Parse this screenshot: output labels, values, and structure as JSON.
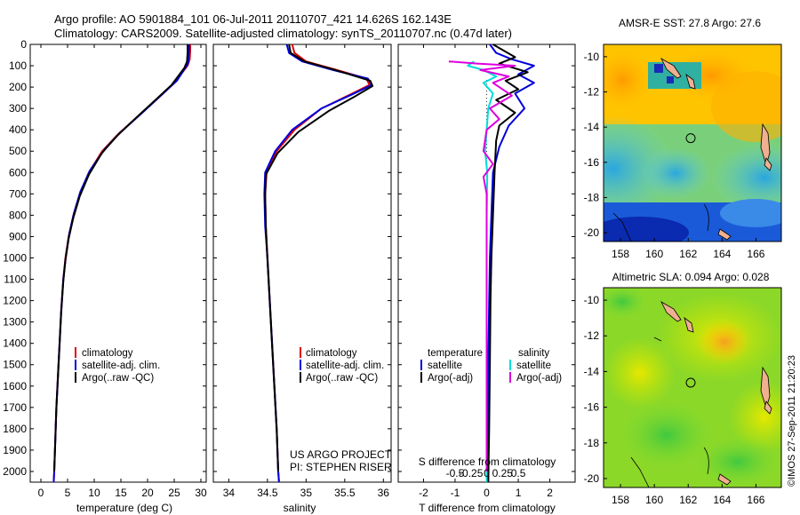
{
  "header": {
    "line1": "Argo profile: AO 5901884_101 06-Jul-2011 20110707_421 14.626S 162.143E",
    "line2": "Climatology: CARS2009. Satellite-adjusted climatology: synTS_20110707.nc (0.47d later)"
  },
  "credit": "©IMOS 27-Sep-2011 21:20:23",
  "chart_data": [
    {
      "name": "temperature",
      "type": "line",
      "xlabel": "temperature (deg C)",
      "ylabel": "",
      "xlim": [
        -2,
        31
      ],
      "ylim": [
        2050,
        0
      ],
      "xticks": [
        "0",
        "5",
        "10",
        "15",
        "20",
        "25",
        "30"
      ],
      "yticks": [
        "0",
        "100",
        "200",
        "300",
        "400",
        "500",
        "600",
        "700",
        "800",
        "900",
        "1000",
        "1100",
        "1200",
        "1300",
        "1400",
        "1500",
        "1600",
        "1700",
        "1800",
        "1900",
        "2000"
      ],
      "series": [
        {
          "name": "climatology",
          "color": "#e00000",
          "points": [
            [
              28.0,
              0
            ],
            [
              28.0,
              30
            ],
            [
              27.9,
              70
            ],
            [
              27.5,
              100
            ],
            [
              25,
              180
            ],
            [
              22,
              250
            ],
            [
              18.5,
              330
            ],
            [
              14.5,
              420
            ],
            [
              11.5,
              500
            ],
            [
              9.0,
              600
            ],
            [
              7.3,
              700
            ],
            [
              6.1,
              800
            ],
            [
              5.2,
              900
            ],
            [
              4.6,
              1000
            ],
            [
              4.2,
              1100
            ],
            [
              3.8,
              1250
            ],
            [
              3.5,
              1400
            ],
            [
              3.2,
              1550
            ],
            [
              2.9,
              1700
            ],
            [
              2.7,
              1850
            ],
            [
              2.5,
              2000
            ],
            [
              2.4,
              2050
            ]
          ]
        },
        {
          "name": "satellite-adj. clim.",
          "color": "#0000dd",
          "points": [
            [
              27.8,
              0
            ],
            [
              27.8,
              30
            ],
            [
              27.7,
              60
            ],
            [
              27.6,
              90
            ],
            [
              25.5,
              170
            ],
            [
              22.5,
              240
            ],
            [
              19,
              320
            ],
            [
              15,
              410
            ],
            [
              12,
              490
            ],
            [
              9.2,
              590
            ],
            [
              7.4,
              690
            ],
            [
              6.2,
              790
            ],
            [
              5.3,
              890
            ],
            [
              4.7,
              990
            ],
            [
              4.2,
              1100
            ],
            [
              3.8,
              1250
            ],
            [
              3.5,
              1400
            ],
            [
              3.2,
              1550
            ],
            [
              2.9,
              1700
            ],
            [
              2.7,
              1850
            ],
            [
              2.5,
              2000
            ],
            [
              2.4,
              2050
            ]
          ]
        },
        {
          "name": "Argo(..raw -QC)",
          "color": "#000000",
          "points": [
            [
              27.5,
              0
            ],
            [
              27.5,
              40
            ],
            [
              27.4,
              80
            ],
            [
              26.9,
              110
            ],
            [
              24.5,
              190
            ],
            [
              21.5,
              260
            ],
            [
              18,
              340
            ],
            [
              14.2,
              430
            ],
            [
              11.4,
              510
            ],
            [
              9.0,
              610
            ],
            [
              7.3,
              710
            ],
            [
              6.1,
              810
            ],
            [
              5.2,
              910
            ],
            [
              4.6,
              1010
            ],
            [
              4.2,
              1110
            ],
            [
              3.8,
              1260
            ],
            [
              3.5,
              1410
            ],
            [
              3.2,
              1560
            ],
            [
              2.9,
              1710
            ],
            [
              2.7,
              1860
            ],
            [
              2.5,
              2000
            ]
          ]
        }
      ],
      "legend": [
        "climatology",
        "satellite-adj. clim.",
        "Argo(..raw -QC)"
      ]
    },
    {
      "name": "salinity",
      "type": "line",
      "xlabel": "salinity",
      "xlim": [
        33.8,
        36.1
      ],
      "ylim": [
        2050,
        0
      ],
      "xticks": [
        "34",
        "34.5",
        "35",
        "35.5",
        "36"
      ],
      "series": [
        {
          "name": "climatology",
          "color": "#e00000",
          "points": [
            [
              34.82,
              0
            ],
            [
              34.85,
              40
            ],
            [
              35.0,
              80
            ],
            [
              35.4,
              120
            ],
            [
              35.78,
              160
            ],
            [
              35.82,
              190
            ],
            [
              35.6,
              230
            ],
            [
              35.2,
              300
            ],
            [
              34.85,
              400
            ],
            [
              34.62,
              500
            ],
            [
              34.49,
              600
            ],
            [
              34.47,
              700
            ],
            [
              34.48,
              850
            ],
            [
              34.5,
              1000
            ],
            [
              34.53,
              1200
            ],
            [
              34.56,
              1400
            ],
            [
              34.59,
              1600
            ],
            [
              34.62,
              1800
            ],
            [
              34.64,
              2000
            ],
            [
              34.65,
              2050
            ]
          ]
        },
        {
          "name": "satellite-adj. clim.",
          "color": "#0000dd",
          "points": [
            [
              34.75,
              0
            ],
            [
              34.78,
              40
            ],
            [
              34.95,
              80
            ],
            [
              35.35,
              120
            ],
            [
              35.8,
              160
            ],
            [
              35.85,
              190
            ],
            [
              35.62,
              230
            ],
            [
              35.2,
              300
            ],
            [
              34.82,
              400
            ],
            [
              34.6,
              500
            ],
            [
              34.47,
              600
            ],
            [
              34.46,
              700
            ],
            [
              34.47,
              850
            ],
            [
              34.5,
              1000
            ],
            [
              34.53,
              1200
            ],
            [
              34.56,
              1400
            ],
            [
              34.59,
              1600
            ],
            [
              34.62,
              1800
            ],
            [
              34.64,
              2000
            ],
            [
              34.65,
              2050
            ]
          ]
        },
        {
          "name": "Argo(..raw -QC)",
          "color": "#000000",
          "points": [
            [
              34.78,
              0
            ],
            [
              34.8,
              40
            ],
            [
              34.98,
              80
            ],
            [
              35.38,
              120
            ],
            [
              35.83,
              170
            ],
            [
              35.86,
              195
            ],
            [
              35.65,
              240
            ],
            [
              35.3,
              310
            ],
            [
              34.9,
              410
            ],
            [
              34.63,
              510
            ],
            [
              34.48,
              610
            ],
            [
              34.47,
              710
            ],
            [
              34.48,
              860
            ],
            [
              34.5,
              1010
            ],
            [
              34.53,
              1210
            ],
            [
              34.56,
              1410
            ],
            [
              34.59,
              1610
            ],
            [
              34.62,
              1810
            ],
            [
              34.64,
              2000
            ]
          ]
        }
      ],
      "legend": [
        "climatology",
        "satellite-adj. clim.",
        "Argo(..raw -QC)"
      ],
      "annotation": [
        "US ARGO PROJECT",
        "PI: STEPHEN RISER"
      ]
    },
    {
      "name": "difference",
      "type": "line",
      "xlabel": "T difference from climatology",
      "xlabel_top": "S difference from climatology",
      "xlim": [
        -2.8,
        2.8
      ],
      "ylim": [
        2050,
        0
      ],
      "xticks": [
        "-2",
        "-1",
        "0",
        "1",
        "2"
      ],
      "sticks": [
        "-0.5",
        "-0.25",
        "0",
        "0.25",
        "0.5"
      ],
      "series": [
        {
          "name": "temperature satellite",
          "color": "#0000dd",
          "points": [
            [
              0.1,
              0
            ],
            [
              0.3,
              40
            ],
            [
              0.8,
              70
            ],
            [
              1.5,
              100
            ],
            [
              1.0,
              140
            ],
            [
              1.5,
              180
            ],
            [
              0.9,
              230
            ],
            [
              1.2,
              300
            ],
            [
              0.7,
              380
            ],
            [
              0.4,
              480
            ],
            [
              0.2,
              600
            ],
            [
              0.15,
              800
            ],
            [
              0.1,
              1000
            ],
            [
              0.08,
              1200
            ],
            [
              0.05,
              1500
            ],
            [
              0.05,
              1800
            ],
            [
              0.05,
              2050
            ]
          ]
        },
        {
          "name": "temperature Argo(-adj)",
          "color": "#000000",
          "points": [
            [
              0.2,
              0
            ],
            [
              0.9,
              60
            ],
            [
              0.4,
              90
            ],
            [
              1.3,
              130
            ],
            [
              0.6,
              170
            ],
            [
              1.0,
              210
            ],
            [
              0.3,
              260
            ],
            [
              0.9,
              320
            ],
            [
              0.4,
              380
            ],
            [
              0.3,
              450
            ],
            [
              0.25,
              600
            ],
            [
              0.2,
              800
            ],
            [
              0.15,
              1000
            ],
            [
              0.12,
              1200
            ],
            [
              0.1,
              1500
            ],
            [
              0.08,
              1800
            ],
            [
              0.05,
              2050
            ]
          ]
        },
        {
          "name": "salinity satellite",
          "color": "#00dddd",
          "points": [
            [
              -0.4,
              80
            ],
            [
              -0.6,
              100
            ],
            [
              -0.1,
              120
            ],
            [
              0.3,
              150
            ],
            [
              -0.1,
              180
            ],
            [
              0.2,
              230
            ],
            [
              0.05,
              300
            ],
            [
              0.0,
              400
            ],
            [
              -0.05,
              500
            ],
            [
              0.02,
              600
            ],
            [
              0.0,
              800
            ],
            [
              0.0,
              1000
            ],
            [
              0.0,
              1300
            ],
            [
              0.0,
              1600
            ],
            [
              0.0,
              2050
            ]
          ]
        },
        {
          "name": "salinity Argo(-adj)",
          "color": "#dd00dd",
          "points": [
            [
              -1.2,
              80
            ],
            [
              -0.3,
              90
            ],
            [
              0.9,
              100
            ],
            [
              -0.2,
              120
            ],
            [
              0.7,
              150
            ],
            [
              0.2,
              180
            ],
            [
              0.8,
              240
            ],
            [
              0.1,
              300
            ],
            [
              0.4,
              350
            ],
            [
              0.0,
              400
            ],
            [
              -0.1,
              500
            ],
            [
              0.2,
              560
            ],
            [
              -0.1,
              620
            ],
            [
              0.0,
              700
            ],
            [
              0.0,
              900
            ],
            [
              0.0,
              1200
            ],
            [
              0.0,
              1500
            ],
            [
              0.0,
              1800
            ],
            [
              0.0,
              2000
            ]
          ]
        }
      ],
      "legend": {
        "temp_header": "temperature",
        "sal_header": "salinity",
        "t_sat": "satellite",
        "t_argo": "Argo(-adj)",
        "s_sat": "satellite",
        "s_argo": "Argo(-adj)"
      }
    },
    {
      "name": "sst_map",
      "type": "heatmap",
      "title": "AMSR-E SST: 27.8  Argo: 27.6",
      "xticks": [
        "158",
        "160",
        "162",
        "164",
        "166"
      ],
      "yticks": [
        "-10",
        "-12",
        "-14",
        "-16",
        "-18",
        "-20"
      ],
      "xlim": [
        157,
        167.5
      ],
      "ylim": [
        -20.5,
        -9.3
      ],
      "argo_lon": 162.143,
      "argo_lat": -14.626
    },
    {
      "name": "sla_map",
      "type": "heatmap",
      "title": "Altimetric SLA: 0.094  Argo: 0.028",
      "xticks": [
        "158",
        "160",
        "162",
        "164",
        "166"
      ],
      "yticks": [
        "-10",
        "-12",
        "-14",
        "-16",
        "-18",
        "-20"
      ],
      "xlim": [
        157,
        167.5
      ],
      "ylim": [
        -20.5,
        -9.3
      ],
      "argo_lon": 162.143,
      "argo_lat": -14.626
    }
  ]
}
